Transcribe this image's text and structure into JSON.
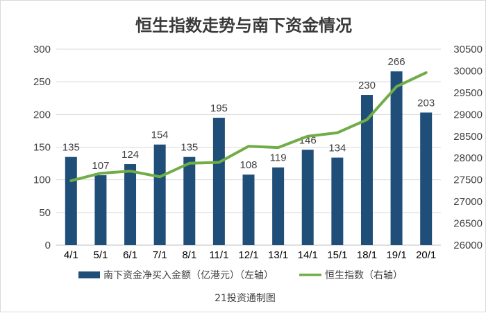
{
  "chart_data": {
    "type": "bar",
    "title": "恒生指数走势与南下资金情况",
    "categories": [
      "4/1",
      "5/1",
      "6/1",
      "7/1",
      "8/1",
      "11/1",
      "12/1",
      "13/1",
      "14/1",
      "15/1",
      "18/1",
      "19/1",
      "20/1"
    ],
    "series": [
      {
        "name": "南下资金净买入金额（亿港元）（左轴）",
        "type": "bar",
        "axis": "left",
        "color": "#1f4e79",
        "values": [
          135,
          107,
          124,
          154,
          135,
          195,
          108,
          119,
          146,
          134,
          230,
          266,
          203
        ],
        "labels": [
          "135",
          "107",
          "124",
          "154",
          "135",
          "195",
          "108",
          "119",
          "146",
          "134",
          "230",
          "266",
          "203"
        ]
      },
      {
        "name": "恒生指数（右轴）",
        "type": "line",
        "axis": "right",
        "color": "#70ad47",
        "values": [
          27480,
          27650,
          27700,
          27570,
          27880,
          27900,
          28270,
          28240,
          28500,
          28580,
          28880,
          29640,
          29960
        ]
      }
    ],
    "y_left": {
      "min": 0,
      "max": 300,
      "ticks": [
        "0",
        "50",
        "100",
        "150",
        "200",
        "250",
        "300"
      ]
    },
    "y_right": {
      "min": 26000,
      "max": 30500,
      "ticks": [
        "26000",
        "26500",
        "27000",
        "27500",
        "28000",
        "28500",
        "29000",
        "29500",
        "30000",
        "30500"
      ]
    },
    "grid": true,
    "legend_position": "bottom",
    "source": "21投资通制图"
  }
}
